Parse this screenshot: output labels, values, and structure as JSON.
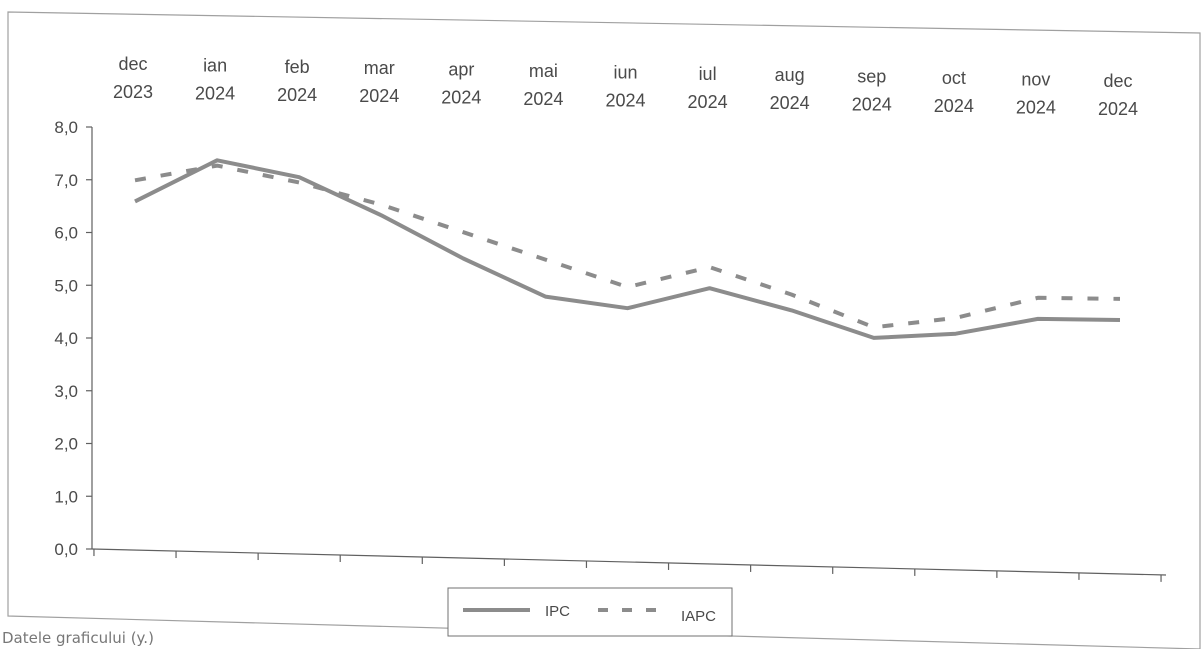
{
  "chart_data": {
    "type": "line",
    "categories": [
      [
        "dec",
        "2023"
      ],
      [
        "ian",
        "2024"
      ],
      [
        "feb",
        "2024"
      ],
      [
        "mar",
        "2024"
      ],
      [
        "apr",
        "2024"
      ],
      [
        "mai",
        "2024"
      ],
      [
        "iun",
        "2024"
      ],
      [
        "iul",
        "2024"
      ],
      [
        "aug",
        "2024"
      ],
      [
        "sep",
        "2024"
      ],
      [
        "oct",
        "2024"
      ],
      [
        "nov",
        "2024"
      ],
      [
        "dec",
        "2024"
      ]
    ],
    "series": [
      {
        "name": "IPC",
        "style": "solid",
        "color": "#8c8c8c",
        "values": [
          6.6,
          7.4,
          7.1,
          6.4,
          5.6,
          4.9,
          4.7,
          5.1,
          4.7,
          4.2,
          4.3,
          4.6,
          4.6
        ]
      },
      {
        "name": "IAPC",
        "style": "dashed",
        "color": "#8c8c8c",
        "values": [
          7.0,
          7.3,
          7.0,
          6.6,
          6.1,
          5.6,
          5.1,
          5.5,
          5.0,
          4.4,
          4.6,
          5.0,
          5.0
        ]
      }
    ],
    "ylim": [
      0,
      8
    ],
    "yticks": [
      "0,0",
      "1,0",
      "2,0",
      "3,0",
      "4,0",
      "5,0",
      "6,0",
      "7,0",
      "8,0"
    ],
    "grid": false,
    "legend_position": "bottom-center"
  },
  "footer": {
    "text": "Datele graficului (y.)"
  }
}
